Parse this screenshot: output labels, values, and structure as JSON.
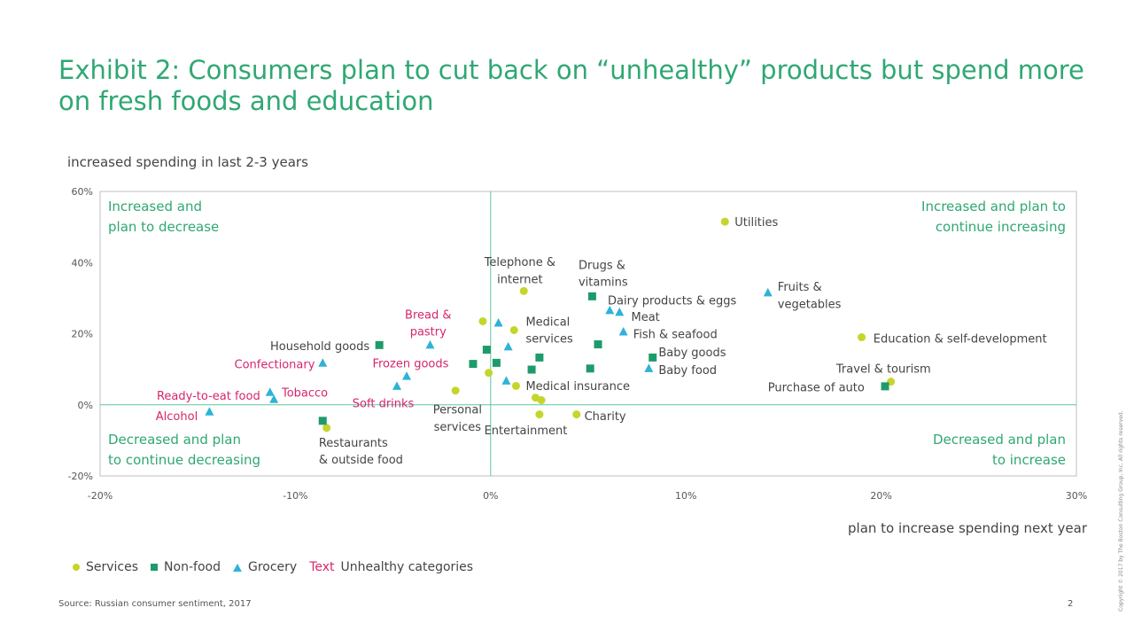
{
  "title": "Exhibit 2: Consumers plan to cut back on “unhealthy” products but spend more on fresh foods and education",
  "source": "Source: Russian consumer sentiment, 2017",
  "page_number": "2",
  "copyright": "Copyright © 2017 by The Boston Consulting Group, Inc. All rights reserved.",
  "legend": {
    "services": "Services",
    "nonfood": "Non-food",
    "grocery": "Grocery",
    "text_sample": "Text",
    "unhealthy": "Unhealthy categories"
  },
  "colors": {
    "services": "#c5d62a",
    "nonfood": "#1e9b6b",
    "grocery": "#2eb3d6",
    "unhealthy_text": "#d6266b",
    "title": "#2fa872",
    "quadrant_text": "#2fa872",
    "axis_line": "#5cc8a0"
  },
  "chart_data": {
    "type": "scatter",
    "ylabel": "increased spending in last 2-3 years",
    "xlabel": "plan to increase spending next year",
    "xlim": [
      -20,
      30
    ],
    "ylim": [
      -20,
      60
    ],
    "xticks": [
      "-20%",
      "-10%",
      "0%",
      "10%",
      "20%",
      "30%"
    ],
    "xtick_values": [
      -20,
      -10,
      0,
      10,
      20,
      30
    ],
    "yticks": [
      "60%",
      "40%",
      "20%",
      "0%",
      "-20%"
    ],
    "ytick_values": [
      60,
      40,
      20,
      0,
      -20
    ],
    "quadrants": {
      "top_left": [
        "Increased and",
        "plan to decrease"
      ],
      "top_right": [
        "Increased and plan to",
        "continue increasing"
      ],
      "bottom_left": [
        "Decreased and plan",
        "to continue decreasing"
      ],
      "bottom_right": [
        "Decreased and plan",
        "to increase"
      ]
    },
    "points": [
      {
        "x": 12,
        "y": 51.5,
        "type": "services"
      },
      {
        "x": 1.7,
        "y": 32,
        "type": "services"
      },
      {
        "x": -0.4,
        "y": 23.5,
        "type": "services"
      },
      {
        "x": 1.2,
        "y": 21,
        "type": "services"
      },
      {
        "x": 19,
        "y": 19,
        "type": "services"
      },
      {
        "x": 20.5,
        "y": 6.5,
        "type": "services"
      },
      {
        "x": -0.1,
        "y": 9,
        "type": "services"
      },
      {
        "x": 1.3,
        "y": 5.3,
        "type": "services"
      },
      {
        "x": -1.8,
        "y": 4,
        "type": "services"
      },
      {
        "x": 2.3,
        "y": 2,
        "type": "services"
      },
      {
        "x": 2.6,
        "y": 1.3,
        "type": "services"
      },
      {
        "x": 2.5,
        "y": -2.7,
        "type": "services"
      },
      {
        "x": 4.4,
        "y": -2.7,
        "type": "services"
      },
      {
        "x": -8.4,
        "y": -6.5,
        "type": "services"
      },
      {
        "x": 5.2,
        "y": 30.5,
        "type": "nonfood"
      },
      {
        "x": -5.7,
        "y": 16.8,
        "type": "nonfood"
      },
      {
        "x": -0.2,
        "y": 15.5,
        "type": "nonfood"
      },
      {
        "x": 5.5,
        "y": 17,
        "type": "nonfood"
      },
      {
        "x": -0.9,
        "y": 11.5,
        "type": "nonfood"
      },
      {
        "x": 0.3,
        "y": 11.8,
        "type": "nonfood"
      },
      {
        "x": 2.5,
        "y": 13.3,
        "type": "nonfood"
      },
      {
        "x": 2.1,
        "y": 9.9,
        "type": "nonfood"
      },
      {
        "x": 5.1,
        "y": 10.2,
        "type": "nonfood"
      },
      {
        "x": 8.3,
        "y": 13.3,
        "type": "nonfood"
      },
      {
        "x": 20.2,
        "y": 5.2,
        "type": "nonfood"
      },
      {
        "x": -8.6,
        "y": -4.5,
        "type": "nonfood"
      },
      {
        "x": 14.2,
        "y": 31.5,
        "type": "grocery"
      },
      {
        "x": 6.1,
        "y": 26.5,
        "type": "grocery"
      },
      {
        "x": 6.6,
        "y": 26,
        "type": "grocery"
      },
      {
        "x": 0.4,
        "y": 23,
        "type": "grocery"
      },
      {
        "x": 6.8,
        "y": 20.5,
        "type": "grocery"
      },
      {
        "x": -3.1,
        "y": 16.8,
        "type": "grocery"
      },
      {
        "x": 0.9,
        "y": 16.3,
        "type": "grocery"
      },
      {
        "x": -8.6,
        "y": 11.7,
        "type": "grocery"
      },
      {
        "x": 8.1,
        "y": 10.2,
        "type": "grocery"
      },
      {
        "x": -4.3,
        "y": 8,
        "type": "grocery"
      },
      {
        "x": 0.8,
        "y": 6.7,
        "type": "grocery"
      },
      {
        "x": -4.8,
        "y": 5.2,
        "type": "grocery"
      },
      {
        "x": -11.3,
        "y": 3.5,
        "type": "grocery"
      },
      {
        "x": -11.1,
        "y": 1.5,
        "type": "grocery"
      },
      {
        "x": -14.4,
        "y": -2,
        "type": "grocery"
      }
    ],
    "labels": [
      {
        "text": "Utilities",
        "x": 12.5,
        "y": 51.5,
        "anchor": "start",
        "unhealthy": false
      },
      {
        "text": "Telephone &",
        "x": 1.5,
        "y": 40.3,
        "anchor": "middle",
        "unhealthy": false
      },
      {
        "text": "internet",
        "x": 1.5,
        "y": 35.5,
        "anchor": "middle",
        "unhealthy": false
      },
      {
        "text": "Drugs &",
        "x": 4.5,
        "y": 39.5,
        "anchor": "start",
        "unhealthy": false
      },
      {
        "text": "vitamins",
        "x": 4.5,
        "y": 34.7,
        "anchor": "start",
        "unhealthy": false
      },
      {
        "text": "Dairy products & eggs",
        "x": 6,
        "y": 29.5,
        "anchor": "start",
        "unhealthy": false
      },
      {
        "text": "Fruits &",
        "x": 14.7,
        "y": 33.3,
        "anchor": "start",
        "unhealthy": false
      },
      {
        "text": "vegetables",
        "x": 14.7,
        "y": 28.5,
        "anchor": "start",
        "unhealthy": false
      },
      {
        "text": "Meat",
        "x": 7.2,
        "y": 24.8,
        "anchor": "start",
        "unhealthy": false
      },
      {
        "text": "Medical",
        "x": 1.8,
        "y": 23.5,
        "anchor": "start",
        "unhealthy": false
      },
      {
        "text": "services",
        "x": 1.8,
        "y": 18.7,
        "anchor": "start",
        "unhealthy": false
      },
      {
        "text": "Fish & seafood",
        "x": 7.3,
        "y": 20,
        "anchor": "start",
        "unhealthy": false
      },
      {
        "text": "Education & self-development",
        "x": 19.6,
        "y": 18.7,
        "anchor": "start",
        "unhealthy": false
      },
      {
        "text": "Baby goods",
        "x": 8.6,
        "y": 14.9,
        "anchor": "start",
        "unhealthy": false
      },
      {
        "text": "Baby food",
        "x": 8.6,
        "y": 9.9,
        "anchor": "start",
        "unhealthy": false
      },
      {
        "text": "Travel & tourism",
        "x": 17.7,
        "y": 10.3,
        "anchor": "start",
        "unhealthy": false
      },
      {
        "text": "Purchase of auto",
        "x": 14.2,
        "y": 5,
        "anchor": "start",
        "unhealthy": false
      },
      {
        "text": "Medical insurance",
        "x": 1.8,
        "y": 5.4,
        "anchor": "start",
        "unhealthy": false
      },
      {
        "text": "Charity",
        "x": 4.8,
        "y": -3,
        "anchor": "start",
        "unhealthy": false
      },
      {
        "text": "Entertainment",
        "x": 1.8,
        "y": -7,
        "anchor": "middle",
        "unhealthy": false
      },
      {
        "text": "Personal",
        "x": -1.7,
        "y": -1.2,
        "anchor": "middle",
        "unhealthy": false
      },
      {
        "text": "services",
        "x": -1.7,
        "y": -6.1,
        "anchor": "middle",
        "unhealthy": false
      },
      {
        "text": "Household goods",
        "x": -6.2,
        "y": 16.6,
        "anchor": "end",
        "unhealthy": false
      },
      {
        "text": "Restaurants",
        "x": -8.8,
        "y": -10.5,
        "anchor": "start",
        "unhealthy": false
      },
      {
        "text": "& outside food",
        "x": -8.8,
        "y": -15.3,
        "anchor": "start",
        "unhealthy": false
      },
      {
        "text": "Bread &",
        "x": -3.2,
        "y": 25.5,
        "anchor": "middle",
        "unhealthy": true
      },
      {
        "text": "pastry",
        "x": -3.2,
        "y": 20.7,
        "anchor": "middle",
        "unhealthy": true
      },
      {
        "text": "Frozen goods",
        "x": -4.1,
        "y": 11.8,
        "anchor": "middle",
        "unhealthy": true
      },
      {
        "text": "Confectionary",
        "x": -9,
        "y": 11.5,
        "anchor": "end",
        "unhealthy": true
      },
      {
        "text": "Ready-to-eat food",
        "x": -11.8,
        "y": 2.7,
        "anchor": "end",
        "unhealthy": true
      },
      {
        "text": "Tobacco",
        "x": -10.7,
        "y": 3.5,
        "anchor": "start",
        "unhealthy": true
      },
      {
        "text": "Soft drinks",
        "x": -5.5,
        "y": 0.5,
        "anchor": "middle",
        "unhealthy": true
      },
      {
        "text": "Alcohol",
        "x": -15,
        "y": -3,
        "anchor": "end",
        "unhealthy": true
      }
    ]
  }
}
